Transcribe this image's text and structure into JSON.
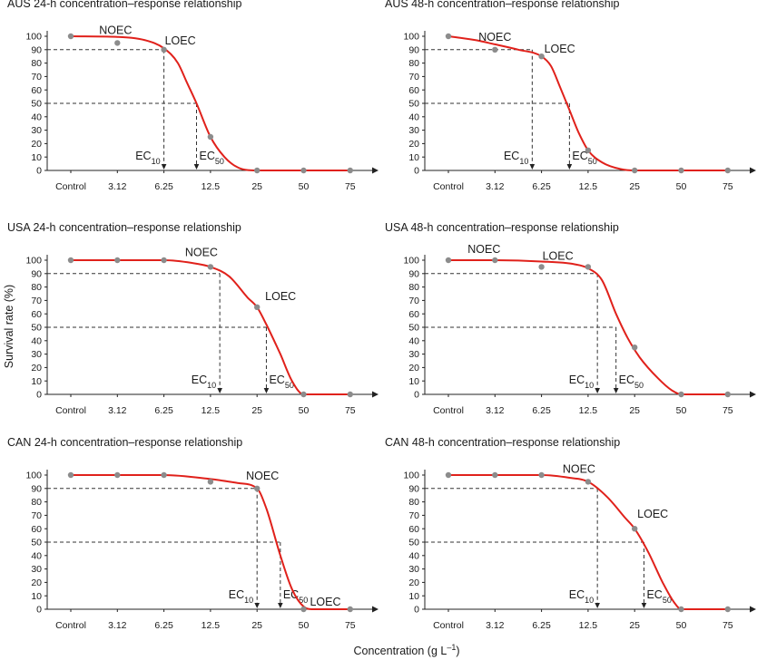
{
  "figure": {
    "ylabel": "Survival rate (%)",
    "xlabel": "Concentration (g L–1)",
    "xlabel_parts": {
      "main": "Concentration (g L",
      "sup": "–1",
      "end": ")"
    }
  },
  "chart_data": [
    {
      "type": "line",
      "title": "AUS 24-h concentration–response relationship",
      "categories": [
        "Control",
        "3.12",
        "6.25",
        "12.5",
        "25",
        "50",
        "75"
      ],
      "yticks": [
        0,
        10,
        20,
        30,
        40,
        50,
        60,
        70,
        80,
        90,
        100
      ],
      "ylim": [
        0,
        100
      ],
      "observed": [
        100,
        95,
        90,
        25,
        0,
        0,
        0
      ],
      "fitted_curve": [
        [
          0,
          100
        ],
        [
          1,
          99.5
        ],
        [
          1.6,
          97
        ],
        [
          2,
          91
        ],
        [
          2.3,
          80
        ],
        [
          2.5,
          65
        ],
        [
          2.7,
          50
        ],
        [
          3,
          25
        ],
        [
          3.3,
          10
        ],
        [
          3.6,
          2
        ],
        [
          4,
          0
        ],
        [
          6,
          0
        ]
      ],
      "ec10": {
        "x": 2.0,
        "y": 90,
        "label": "EC",
        "sub": "10"
      },
      "ec50": {
        "x": 2.7,
        "y": 50,
        "label": "EC",
        "sub": "50"
      },
      "noec": {
        "x": 1.0,
        "y": 95,
        "label": "NOEC"
      },
      "loec": {
        "x": 2.0,
        "y": 90,
        "label": "LOEC"
      }
    },
    {
      "type": "line",
      "title": "AUS 48-h concentration–response relationship",
      "categories": [
        "Control",
        "3.12",
        "6.25",
        "12.5",
        "25",
        "50",
        "75"
      ],
      "yticks": [
        0,
        10,
        20,
        30,
        40,
        50,
        60,
        70,
        80,
        90,
        100
      ],
      "ylim": [
        0,
        100
      ],
      "observed": [
        100,
        90,
        85,
        15,
        0,
        0,
        0
      ],
      "fitted_curve": [
        [
          0,
          100
        ],
        [
          0.6,
          97
        ],
        [
          1,
          94
        ],
        [
          1.5,
          90
        ],
        [
          2,
          85
        ],
        [
          2.2,
          78
        ],
        [
          2.4,
          62
        ],
        [
          2.6,
          45
        ],
        [
          2.8,
          28
        ],
        [
          3,
          15
        ],
        [
          3.3,
          6
        ],
        [
          3.7,
          1
        ],
        [
          4,
          0
        ],
        [
          6,
          0
        ]
      ],
      "ec10": {
        "x": 1.8,
        "y": 90,
        "label": "EC",
        "sub": "10"
      },
      "ec50": {
        "x": 2.6,
        "y": 50,
        "label": "EC",
        "sub": "50"
      },
      "noec": {
        "x": 1.0,
        "y": 90,
        "label": "NOEC"
      },
      "loec": {
        "x": 2.0,
        "y": 85,
        "label": "LOEC"
      }
    },
    {
      "type": "line",
      "title": "USA 24-h concentration–response relationship",
      "categories": [
        "Control",
        "3.12",
        "6.25",
        "12.5",
        "25",
        "50",
        "75"
      ],
      "yticks": [
        0,
        10,
        20,
        30,
        40,
        50,
        60,
        70,
        80,
        90,
        100
      ],
      "ylim": [
        0,
        100
      ],
      "observed": [
        100,
        100,
        100,
        95,
        65,
        0,
        0
      ],
      "fitted_curve": [
        [
          0,
          100
        ],
        [
          1,
          100
        ],
        [
          2,
          100
        ],
        [
          2.6,
          98
        ],
        [
          3,
          95
        ],
        [
          3.4,
          88
        ],
        [
          3.8,
          72
        ],
        [
          4,
          65
        ],
        [
          4.2,
          52
        ],
        [
          4.5,
          30
        ],
        [
          4.75,
          10
        ],
        [
          5,
          0
        ],
        [
          6,
          0
        ]
      ],
      "ec10": {
        "x": 3.2,
        "y": 90,
        "label": "EC",
        "sub": "10"
      },
      "ec50": {
        "x": 4.2,
        "y": 50,
        "label": "EC",
        "sub": "50"
      },
      "noec": {
        "x": 3.0,
        "y": 95,
        "label": "NOEC"
      },
      "loec": {
        "x": 4.0,
        "y": 65,
        "label": "LOEC"
      }
    },
    {
      "type": "line",
      "title": "USA 48-h concentration–response relationship",
      "categories": [
        "Control",
        "3.12",
        "6.25",
        "12.5",
        "25",
        "50",
        "75"
      ],
      "yticks": [
        0,
        10,
        20,
        30,
        40,
        50,
        60,
        70,
        80,
        90,
        100
      ],
      "ylim": [
        0,
        100
      ],
      "observed": [
        100,
        100,
        95,
        95,
        35,
        0,
        0
      ],
      "fitted_curve": [
        [
          0,
          100
        ],
        [
          1,
          100
        ],
        [
          2,
          99
        ],
        [
          2.7,
          97
        ],
        [
          3,
          94
        ],
        [
          3.3,
          85
        ],
        [
          3.6,
          60
        ],
        [
          3.85,
          42
        ],
        [
          4.1,
          28
        ],
        [
          4.5,
          12
        ],
        [
          4.8,
          3
        ],
        [
          5,
          0
        ],
        [
          6,
          0
        ]
      ],
      "ec10": {
        "x": 3.2,
        "y": 90,
        "label": "EC",
        "sub": "10"
      },
      "ec50": {
        "x": 3.6,
        "y": 50,
        "label": "EC",
        "sub": "50"
      },
      "noec": {
        "x": 1.0,
        "y": 100,
        "label": "NOEC"
      },
      "loec": {
        "x": 2.0,
        "y": 95,
        "label": "LOEC"
      }
    },
    {
      "type": "line",
      "title": "CAN 24-h concentration–response relationship",
      "categories": [
        "Control",
        "3.12",
        "6.25",
        "12.5",
        "25",
        "50",
        "75"
      ],
      "yticks": [
        0,
        10,
        20,
        30,
        40,
        50,
        60,
        70,
        80,
        90,
        100
      ],
      "ylim": [
        0,
        100
      ],
      "observed": [
        100,
        100,
        100,
        95,
        90,
        0,
        0
      ],
      "fitted_curve": [
        [
          0,
          100
        ],
        [
          1,
          100
        ],
        [
          2,
          100
        ],
        [
          3,
          97
        ],
        [
          3.6,
          94
        ],
        [
          4,
          90
        ],
        [
          4.2,
          75
        ],
        [
          4.5,
          40
        ],
        [
          4.75,
          15
        ],
        [
          5,
          2
        ],
        [
          5.2,
          0
        ],
        [
          6,
          0
        ]
      ],
      "ec10": {
        "x": 4.0,
        "y": 90,
        "label": "EC",
        "sub": "10"
      },
      "ec50": {
        "x": 4.5,
        "y": 50,
        "label": "EC",
        "sub": "50"
      },
      "noec": {
        "x": 4.0,
        "y": 90,
        "label": "NOEC"
      },
      "loec": {
        "x": 5.0,
        "y": 0,
        "label": "LOEC"
      }
    },
    {
      "type": "line",
      "title": "CAN 48-h concentration–response relationship",
      "categories": [
        "Control",
        "3.12",
        "6.25",
        "12.5",
        "25",
        "50",
        "75"
      ],
      "yticks": [
        0,
        10,
        20,
        30,
        40,
        50,
        60,
        70,
        80,
        90,
        100
      ],
      "ylim": [
        0,
        100
      ],
      "observed": [
        100,
        100,
        100,
        95,
        60,
        0,
        0
      ],
      "fitted_curve": [
        [
          0,
          100
        ],
        [
          1,
          100
        ],
        [
          2,
          100
        ],
        [
          2.6,
          98
        ],
        [
          3,
          95
        ],
        [
          3.4,
          84
        ],
        [
          3.8,
          68
        ],
        [
          4,
          60
        ],
        [
          4.3,
          42
        ],
        [
          4.6,
          20
        ],
        [
          4.85,
          5
        ],
        [
          5,
          0
        ],
        [
          6,
          0
        ]
      ],
      "ec10": {
        "x": 3.2,
        "y": 90,
        "label": "EC",
        "sub": "10"
      },
      "ec50": {
        "x": 4.2,
        "y": 50,
        "label": "EC",
        "sub": "50"
      },
      "noec": {
        "x": 3.0,
        "y": 95,
        "label": "NOEC"
      },
      "loec": {
        "x": 4.0,
        "y": 60,
        "label": "LOEC"
      }
    }
  ]
}
